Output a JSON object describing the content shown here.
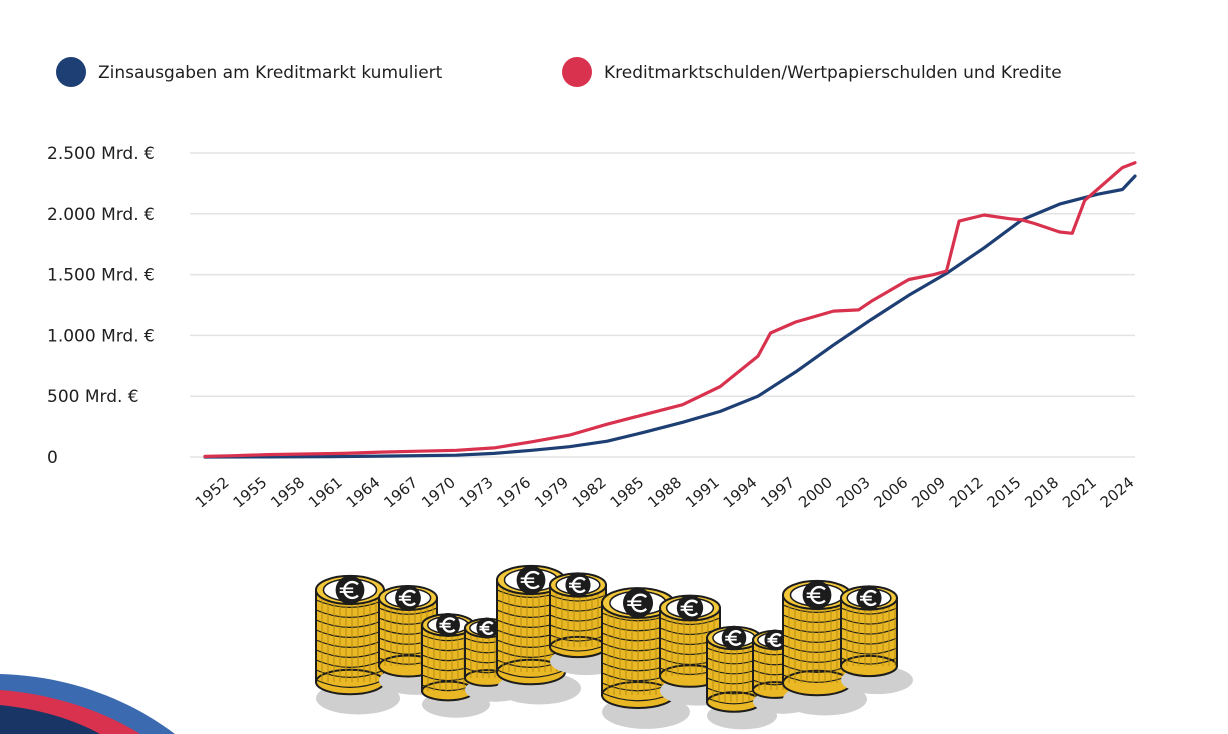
{
  "chart_data": {
    "type": "line",
    "title": "",
    "xlabel": "",
    "ylabel": "",
    "x": [
      1950,
      1952,
      1955,
      1958,
      1961,
      1964,
      1967,
      1970,
      1973,
      1976,
      1979,
      1982,
      1985,
      1988,
      1991,
      1994,
      1995,
      1997,
      2000,
      2002,
      2003,
      2006,
      2008,
      2009,
      2010,
      2012,
      2014,
      2015,
      2016,
      2018,
      2019,
      2020,
      2021,
      2023,
      2024
    ],
    "x_ticks": [
      "1952",
      "1955",
      "1958",
      "1961",
      "1964",
      "1967",
      "1970",
      "1973",
      "1976",
      "1979",
      "1982",
      "1985",
      "1988",
      "1991",
      "1994",
      "1997",
      "2000",
      "2003",
      "2006",
      "2009",
      "2012",
      "2015",
      "2018",
      "2021",
      "2024"
    ],
    "y_ticks": [
      {
        "value": 0,
        "label": "0"
      },
      {
        "value": 500,
        "label": "500 Mrd. €"
      },
      {
        "value": 1000,
        "label": "1.000 Mrd. €"
      },
      {
        "value": 1500,
        "label": "1.500 Mrd. €"
      },
      {
        "value": 2000,
        "label": "2.000 Mrd. €"
      },
      {
        "value": 2500,
        "label": "2.500 Mrd. €"
      }
    ],
    "ylim": [
      0,
      2500
    ],
    "xlim": [
      1950,
      2024
    ],
    "grid": true,
    "legend_position": "top",
    "series": [
      {
        "name": "Zinsausgaben am Kreditmarkt kumuliert",
        "color": "#1e3f74",
        "x": [
          1950,
          1955,
          1960,
          1965,
          1970,
          1973,
          1976,
          1979,
          1982,
          1985,
          1988,
          1991,
          1994,
          1997,
          2000,
          2003,
          2006,
          2009,
          2012,
          2015,
          2018,
          2021,
          2023,
          2024
        ],
        "values": [
          0,
          1,
          3,
          8,
          15,
          30,
          55,
          85,
          130,
          205,
          285,
          375,
          500,
          700,
          920,
          1130,
          1330,
          1510,
          1720,
          1950,
          2080,
          2160,
          2200,
          2310
        ]
      },
      {
        "name": "Kreditmarktschulden/Wertpapierschulden und Kredite",
        "color": "#d9324e",
        "x": [
          1950,
          1952,
          1955,
          1958,
          1961,
          1964,
          1967,
          1970,
          1973,
          1976,
          1979,
          1982,
          1985,
          1988,
          1991,
          1994,
          1995,
          1997,
          2000,
          2002,
          2003,
          2006,
          2008,
          2009,
          2010,
          2012,
          2014,
          2015,
          2016,
          2018,
          2019,
          2020,
          2021,
          2023,
          2024
        ],
        "values": [
          5,
          10,
          20,
          25,
          30,
          40,
          48,
          55,
          75,
          125,
          180,
          270,
          350,
          430,
          580,
          830,
          1020,
          1110,
          1200,
          1210,
          1280,
          1460,
          1500,
          1530,
          1940,
          1990,
          1960,
          1950,
          1920,
          1850,
          1840,
          2110,
          2200,
          2380,
          2420
        ]
      }
    ]
  }
}
